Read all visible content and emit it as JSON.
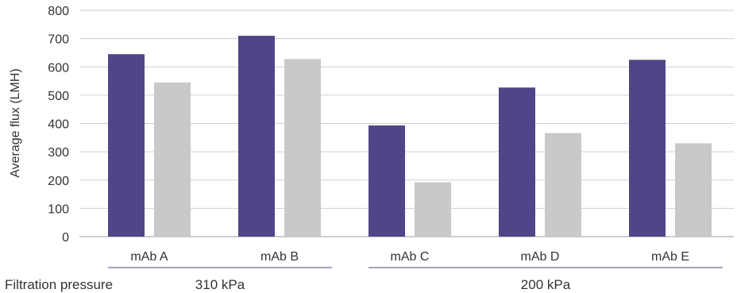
{
  "chart_data": {
    "type": "bar",
    "categories": [
      "mAb A",
      "mAb B",
      "mAb C",
      "mAb D",
      "mAb E"
    ],
    "series": [
      {
        "values": [
          645,
          710,
          393,
          527,
          625
        ],
        "color": "#4f4687"
      },
      {
        "values": [
          545,
          628,
          192,
          366,
          330
        ],
        "color": "#c8c9c8"
      }
    ],
    "ylabel": "Average flux (LMH)",
    "ylim": [
      0,
      800
    ],
    "yticks": [
      0,
      100,
      200,
      300,
      400,
      500,
      600,
      700,
      800
    ],
    "grid": true,
    "groups": {
      "label": "Filtration pressure",
      "items": [
        {
          "label": "310 kPa",
          "categories": [
            "mAb A",
            "mAb B"
          ]
        },
        {
          "label": "200 kPa",
          "categories": [
            "mAb C",
            "mAb D",
            "mAb E"
          ]
        }
      ]
    }
  }
}
